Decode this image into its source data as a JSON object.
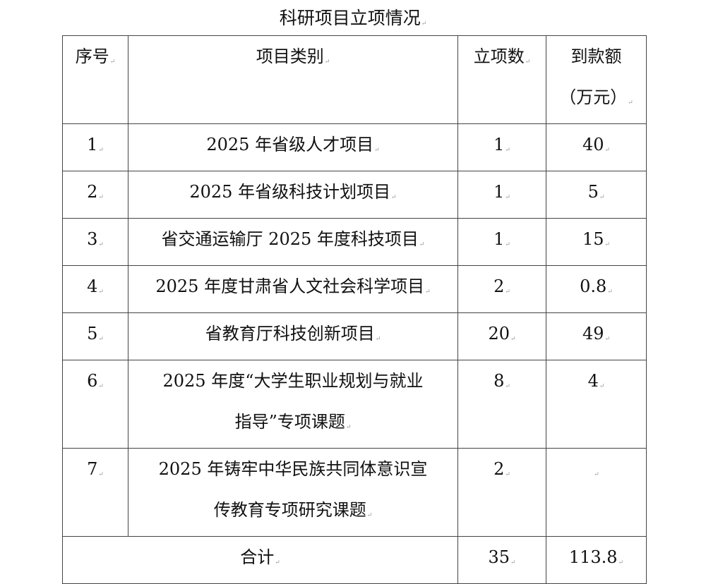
{
  "title": "科研项目立项情况",
  "table": {
    "headers": {
      "index": "序号",
      "category": "项目类别",
      "count": "立项数",
      "amount_line1": "到款额",
      "amount_line2": "（万元）"
    },
    "rows": [
      {
        "index": "1",
        "category": "2025 年省级人才项目",
        "count": "1",
        "amount": "40"
      },
      {
        "index": "2",
        "category": "2025 年省级科技计划项目",
        "count": "1",
        "amount": "5"
      },
      {
        "index": "3",
        "category": "省交通运输厅 2025 年度科技项目",
        "count": "1",
        "amount": "15"
      },
      {
        "index": "4",
        "category": "2025 年度甘肃省人文社会科学项目",
        "count": "2",
        "amount": "0.8"
      },
      {
        "index": "5",
        "category": "省教育厅科技创新项目",
        "count": "20",
        "amount": "49"
      },
      {
        "index": "6",
        "category_line1": "2025 年度“大学生职业规划与就业",
        "category_line2": "指导”专项课题",
        "count": "8",
        "amount": "4"
      },
      {
        "index": "7",
        "category_line1": "2025 年铸牢中华民族共同体意识宣",
        "category_line2": "传教育专项研究课题",
        "count": "2",
        "amount": ""
      }
    ],
    "total": {
      "label": "合计",
      "count": "35",
      "amount": "113.8"
    }
  }
}
